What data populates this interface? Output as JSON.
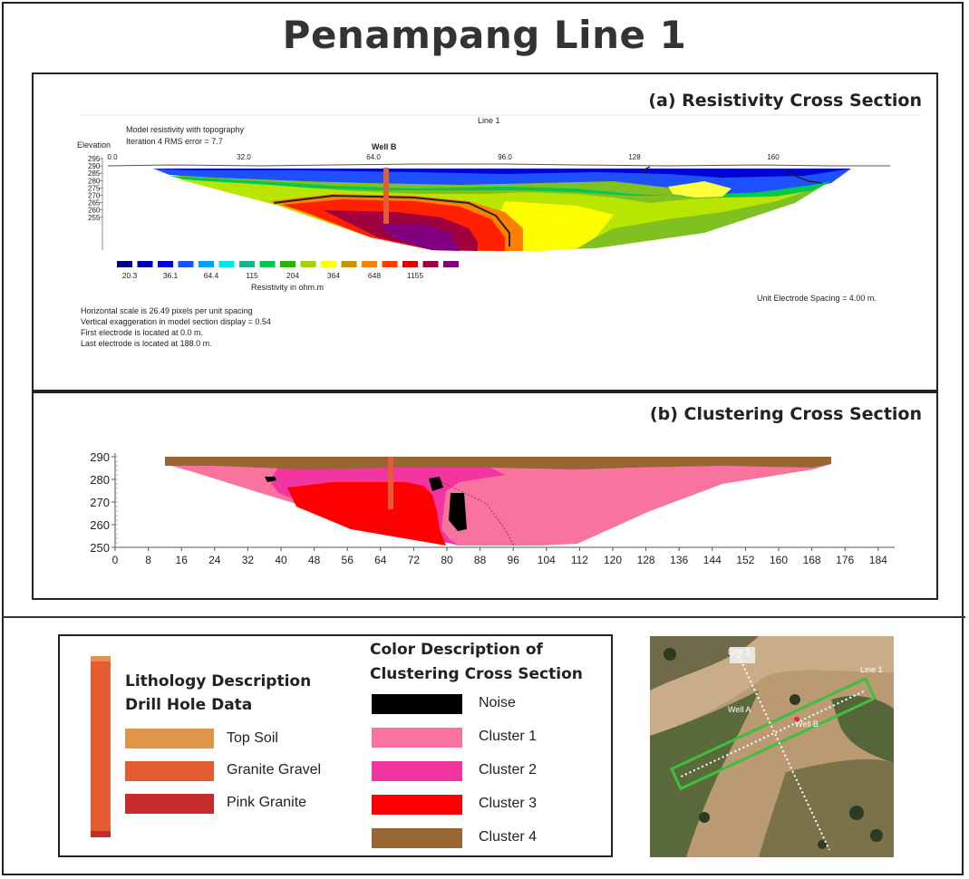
{
  "title": "Penampang Line 1",
  "panel_a": {
    "title": "(a) Resistivity Cross Section",
    "line_label": "Line 1",
    "model_text1": "Model resistivity with topography",
    "model_text2": "Iteration 4 RMS error = 7.7",
    "elevation_label": "Elevation",
    "well_label": "Well B",
    "x_ticks": [
      "0.0",
      "32.0",
      "64.0",
      "96.0",
      "128",
      "160"
    ],
    "y_ticks": [
      "295",
      "290",
      "285",
      "280",
      "275",
      "270",
      "265",
      "260",
      "255"
    ],
    "scale_colors": [
      "#000080",
      "#0000b4",
      "#0000e0",
      "#1e50ff",
      "#00a0ff",
      "#00e6e6",
      "#14b48c",
      "#00c850",
      "#28b400",
      "#a0d200",
      "#ffff00",
      "#c89600",
      "#ff8000",
      "#ff3c00",
      "#dc0000",
      "#a00040",
      "#800080"
    ],
    "scale_labels": [
      "20.3",
      "36.1",
      "64.4",
      "115",
      "204",
      "364",
      "648",
      "1155"
    ],
    "scale_unit": "Resistivity in ohm.m",
    "unit_spacing": "Unit Electrode Spacing = 4.00 m.",
    "notes": [
      "Horizontal scale is 26.49 pixels per unit spacing",
      "Vertical exaggeration in model section display = 0.54",
      "First electrode is located at 0.0  m.",
      "Last electrode is located at 188.0 m."
    ]
  },
  "panel_b": {
    "title": "(b) Clustering Cross Section",
    "y_ticks": [
      "290",
      "280",
      "270",
      "260",
      "250"
    ],
    "x_ticks": [
      "0",
      "8",
      "16",
      "24",
      "32",
      "40",
      "48",
      "56",
      "64",
      "72",
      "80",
      "88",
      "96",
      "104",
      "112",
      "120",
      "128",
      "136",
      "144",
      "152",
      "160",
      "168",
      "176",
      "184"
    ]
  },
  "legend": {
    "lithology_title_1": "Lithology Description",
    "lithology_title_2": "Drill Hole Data",
    "lithology": [
      {
        "label": "Top Soil",
        "color": "#e0954a"
      },
      {
        "label": "Granite Gravel",
        "color": "#e55b32"
      },
      {
        "label": "Pink Granite",
        "color": "#c62c2c"
      }
    ],
    "cluster_title_1": "Color Description  of",
    "cluster_title_2": "Clustering Cross Section",
    "clusters": [
      {
        "label": "Noise",
        "color": "#000000"
      },
      {
        "label": "Cluster 1",
        "color": "#f8749e"
      },
      {
        "label": "Cluster 2",
        "color": "#f235a0"
      },
      {
        "label": "Cluster 3",
        "color": "#ff0000"
      },
      {
        "label": "Cluster 4",
        "color": "#996633"
      }
    ]
  },
  "map": {
    "labels": [
      "Line 3",
      "Line 1",
      "Well A",
      "Well B"
    ]
  }
}
